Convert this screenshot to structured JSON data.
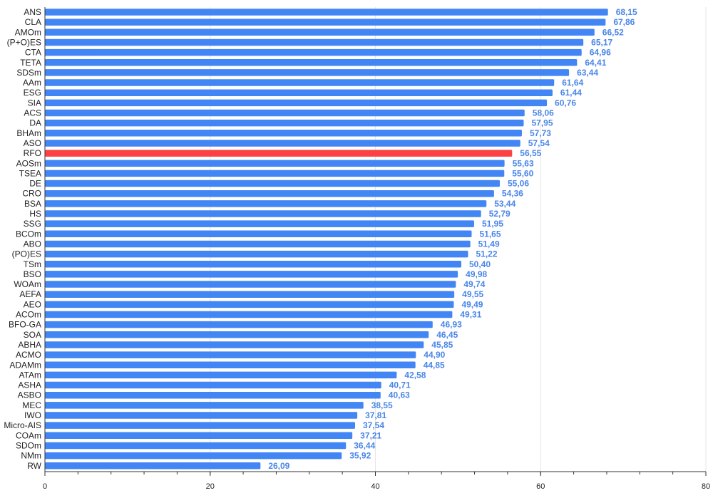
{
  "chart_data": {
    "type": "bar",
    "orientation": "horizontal",
    "categories": [
      "ANS",
      "CLA",
      "AMOm",
      "(P+O)ES",
      "CTA",
      "TETA",
      "SDSm",
      "AAm",
      "ESG",
      "SIA",
      "ACS",
      "DA",
      "BHAm",
      "ASO",
      "RFO",
      "AOSm",
      "TSEA",
      "DE",
      "CRO",
      "BSA",
      "HS",
      "SSG",
      "BCOm",
      "ABO",
      "(PO)ES",
      "TSm",
      "BSO",
      "WOAm",
      "AEFA",
      "AEO",
      "ACOm",
      "BFO-GA",
      "SOA",
      "ABHA",
      "ACMO",
      "ADAMm",
      "ATAm",
      "ASHA",
      "ASBO",
      "MEC",
      "IWO",
      "Micro-AIS",
      "COAm",
      "SDOm",
      "NMm",
      "RW"
    ],
    "values": [
      68.15,
      67.86,
      66.52,
      65.17,
      64.96,
      64.41,
      63.44,
      61.64,
      61.44,
      60.76,
      58.06,
      57.95,
      57.73,
      57.54,
      56.55,
      55.63,
      55.6,
      55.06,
      54.36,
      53.44,
      52.79,
      51.95,
      51.65,
      51.49,
      51.22,
      50.4,
      49.98,
      49.74,
      49.55,
      49.49,
      49.31,
      46.93,
      46.45,
      45.85,
      44.9,
      44.85,
      42.58,
      40.71,
      40.63,
      38.55,
      37.81,
      37.54,
      37.21,
      36.44,
      35.92,
      26.09
    ],
    "value_labels": [
      "68,15",
      "67,86",
      "66,52",
      "65,17",
      "64,96",
      "64,41",
      "63,44",
      "61,64",
      "61,44",
      "60,76",
      "58,06",
      "57,95",
      "57,73",
      "57,54",
      "56,55",
      "55,63",
      "55,60",
      "55,06",
      "54,36",
      "53,44",
      "52,79",
      "51,95",
      "51,65",
      "51,49",
      "51,22",
      "50,40",
      "49,98",
      "49,74",
      "49,55",
      "49,49",
      "49,31",
      "46,93",
      "46,45",
      "45,85",
      "44,90",
      "44,85",
      "42,58",
      "40,71",
      "40,63",
      "38,55",
      "37,81",
      "37,54",
      "37,21",
      "36,44",
      "35,92",
      "26,09"
    ],
    "highlight_category": "RFO",
    "xlim": [
      0,
      80
    ],
    "xticks": [
      0,
      20,
      40,
      60,
      80
    ],
    "xtick_labels": [
      "0",
      "20",
      "40",
      "60",
      "80"
    ],
    "minor_step": 4,
    "grid": true,
    "legend": "none",
    "title": "",
    "xlabel": "",
    "ylabel": ""
  },
  "colors": {
    "bar": "#4285f4",
    "highlight": "#fb4143",
    "value_label": "#4a86e8",
    "grid": "#e6e6e6",
    "axis": "#333333"
  }
}
